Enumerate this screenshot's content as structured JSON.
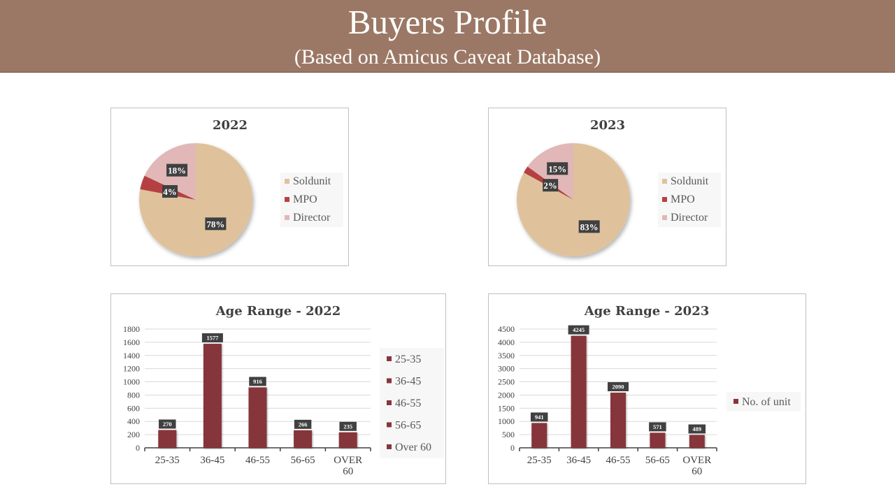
{
  "header": {
    "title": "Buyers Profile",
    "subtitle": "(Based on Amicus Caveat Database)"
  },
  "colors": {
    "header_bg": "#9b7865",
    "soldunit": "#dfc29c",
    "mpo": "#b54143",
    "director": "#e1b7b7",
    "bar": "#86363a",
    "label_bg": "#404040"
  },
  "chart_data": [
    {
      "type": "pie",
      "title": "2022",
      "categories": [
        "Soldunit",
        "MPO",
        "Director"
      ],
      "values": [
        78,
        4,
        18
      ],
      "labels": [
        "78%",
        "4%",
        "18%"
      ],
      "legend": "right"
    },
    {
      "type": "pie",
      "title": "2023",
      "categories": [
        "Soldunit",
        "MPO",
        "Director"
      ],
      "values": [
        83,
        2,
        15
      ],
      "labels": [
        "83%",
        "2%",
        "15%"
      ],
      "legend": "right"
    },
    {
      "type": "bar",
      "title": "Age Range - 2022",
      "categories": [
        "25-35",
        "36-45",
        "46-55",
        "56-65",
        "OVER 60"
      ],
      "values": [
        270,
        1577,
        916,
        266,
        235
      ],
      "ylim": [
        0,
        1800
      ],
      "yticks": [
        0,
        200,
        400,
        600,
        800,
        1000,
        1200,
        1400,
        1600,
        1800
      ],
      "grid": true,
      "legend": "right",
      "legend_entries": [
        "25-35",
        "36-45",
        "46-55",
        "56-65",
        "Over 60"
      ]
    },
    {
      "type": "bar",
      "title": "Age Range - 2023",
      "categories": [
        "25-35",
        "36-45",
        "46-55",
        "56-65",
        "OVER 60"
      ],
      "values": [
        941,
        4245,
        2090,
        571,
        489
      ],
      "ylim": [
        0,
        4500
      ],
      "yticks": [
        0,
        500,
        1000,
        1500,
        2000,
        2500,
        3000,
        3500,
        4000,
        4500
      ],
      "grid": true,
      "legend": "right",
      "legend_entries": [
        "No. of unit"
      ]
    }
  ]
}
